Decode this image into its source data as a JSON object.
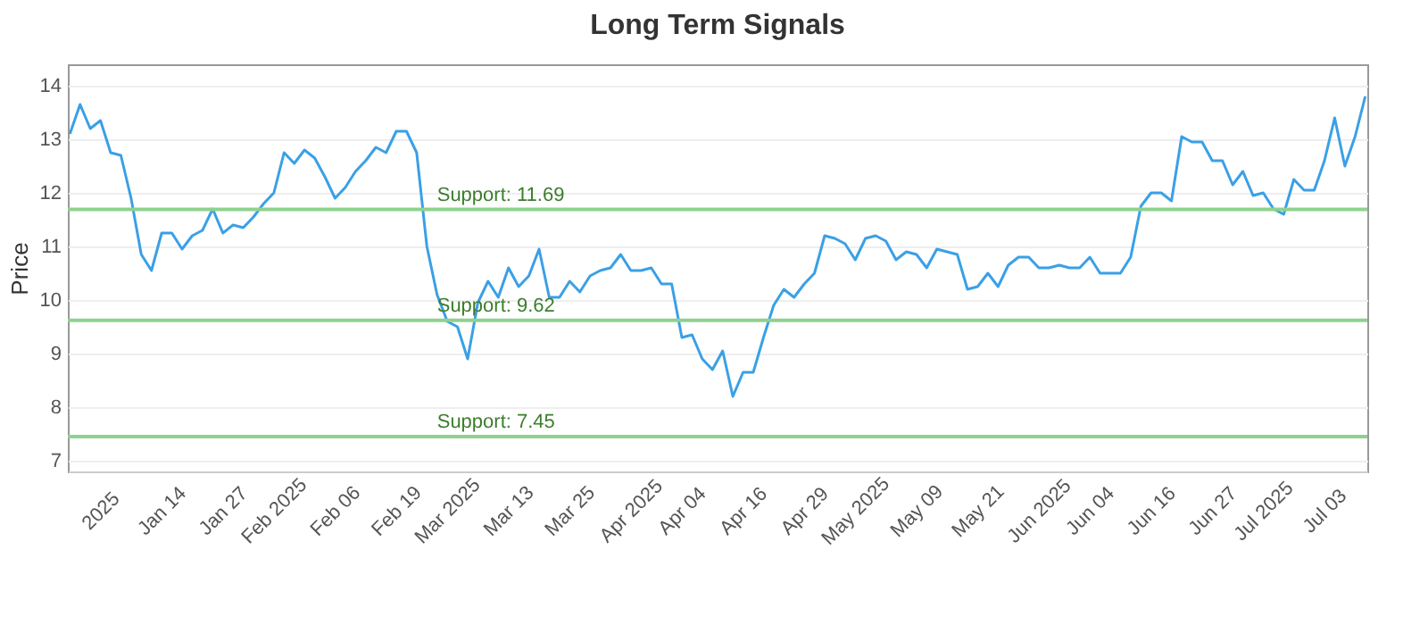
{
  "chart_data": {
    "type": "line",
    "title": "Long Term Signals",
    "ylabel": "Price",
    "categories": [
      null,
      null,
      null,
      "2025",
      null,
      null,
      null,
      null,
      null,
      "Jan 14",
      null,
      null,
      null,
      null,
      null,
      "Jan 27",
      null,
      null,
      null,
      null,
      "Feb 2025",
      null,
      null,
      null,
      null,
      null,
      "Feb 06",
      null,
      null,
      null,
      null,
      null,
      "Feb 19",
      null,
      null,
      null,
      null,
      "Mar 2025",
      null,
      null,
      null,
      null,
      null,
      "Mar 13",
      null,
      null,
      null,
      null,
      null,
      "Mar 25",
      null,
      null,
      null,
      null,
      null,
      "Apr 2025",
      null,
      null,
      null,
      null,
      "Apr 04",
      null,
      null,
      null,
      null,
      null,
      "Apr 16",
      null,
      null,
      null,
      null,
      null,
      "Apr 29",
      null,
      null,
      null,
      null,
      "May 2025",
      null,
      null,
      null,
      null,
      null,
      "May 09",
      null,
      null,
      null,
      null,
      null,
      "May 21",
      null,
      null,
      null,
      null,
      null,
      "Jun 2025",
      null,
      null,
      null,
      null,
      "Jun 04",
      null,
      null,
      null,
      null,
      null,
      "Jun 16",
      null,
      null,
      null,
      null,
      null,
      "Jun 27",
      null,
      null,
      null,
      null,
      "Jul 2025",
      null,
      null,
      null,
      null,
      null,
      "Jul 03",
      null,
      null,
      null,
      null
    ],
    "series": [
      {
        "color": "#3aa0e6",
        "values": [
          13.1,
          13.65,
          13.2,
          13.35,
          12.75,
          12.7,
          11.9,
          10.85,
          10.55,
          11.25,
          11.25,
          10.95,
          11.2,
          11.3,
          11.7,
          11.25,
          11.4,
          11.35,
          11.55,
          11.8,
          12.0,
          12.75,
          12.55,
          12.8,
          12.65,
          12.3,
          11.9,
          12.1,
          12.4,
          12.6,
          12.85,
          12.75,
          13.15,
          13.15,
          12.75,
          11.0,
          10.1,
          9.6,
          9.5,
          8.9,
          9.95,
          10.35,
          10.05,
          10.6,
          10.25,
          10.45,
          10.95,
          10.05,
          10.05,
          10.35,
          10.15,
          10.45,
          10.55,
          10.6,
          10.85,
          10.55,
          10.55,
          10.6,
          10.3,
          10.3,
          9.3,
          9.35,
          8.9,
          8.7,
          9.05,
          8.2,
          8.65,
          8.65,
          9.3,
          9.9,
          10.2,
          10.05,
          10.3,
          10.5,
          11.2,
          11.15,
          11.05,
          10.75,
          11.15,
          11.2,
          11.1,
          10.75,
          10.9,
          10.85,
          10.6,
          10.95,
          10.9,
          10.85,
          10.2,
          10.25,
          10.5,
          10.25,
          10.65,
          10.8,
          10.8,
          10.6,
          10.6,
          10.65,
          10.6,
          10.6,
          10.8,
          10.5,
          10.5,
          10.5,
          10.8,
          11.75,
          12.0,
          12.0,
          11.85,
          13.05,
          12.95,
          12.95,
          12.6,
          12.6,
          12.15,
          12.4,
          11.95,
          12.0,
          11.7,
          11.6,
          12.25,
          12.05,
          12.05,
          12.6,
          13.4,
          12.5,
          13.05,
          13.8
        ]
      }
    ],
    "ylim": [
      6.8,
      14.4
    ],
    "yticks": [
      7,
      8,
      9,
      10,
      11,
      12,
      13,
      14
    ],
    "grid": "y",
    "ref_lines": [
      {
        "axis": "y",
        "value": 11.69,
        "label": "Support: 11.69",
        "color": "#8fd18f"
      },
      {
        "axis": "y",
        "value": 9.62,
        "label": "Support: 9.62",
        "color": "#8fd18f"
      },
      {
        "axis": "y",
        "value": 7.45,
        "label": "Support: 7.45",
        "color": "#8fd18f"
      }
    ]
  }
}
